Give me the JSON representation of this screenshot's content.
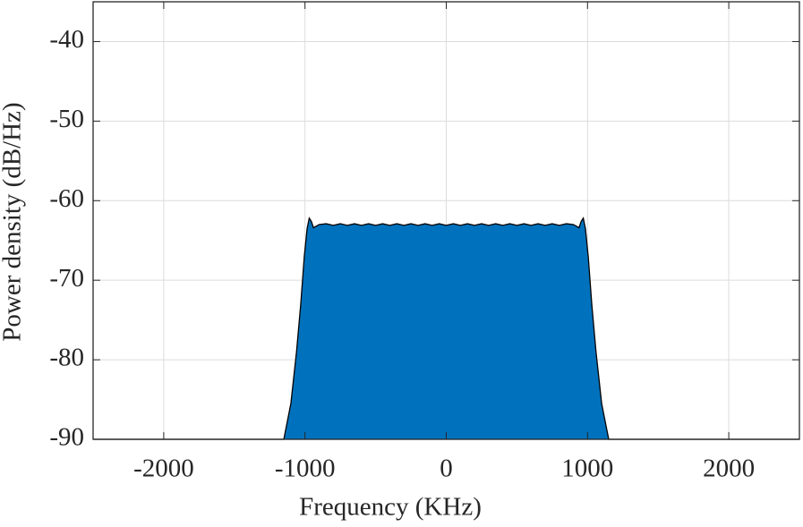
{
  "chart_data": {
    "type": "area",
    "xlabel": "Frequency (KHz)",
    "ylabel": "Power density (dB/Hz)",
    "x": [
      -2500,
      -1150,
      -1100,
      -1060,
      -1030,
      -1005,
      -985,
      -970,
      -955,
      -940,
      -900,
      -850,
      -800,
      -750,
      -700,
      -650,
      -600,
      -550,
      -500,
      -450,
      -400,
      -350,
      -300,
      -250,
      -200,
      -150,
      -100,
      -50,
      0,
      50,
      100,
      150,
      200,
      250,
      300,
      350,
      400,
      450,
      500,
      550,
      600,
      650,
      700,
      750,
      800,
      850,
      900,
      940,
      955,
      970,
      985,
      1005,
      1030,
      1060,
      1100,
      1150,
      2500
    ],
    "values": [
      -90,
      -90,
      -85.5,
      -79,
      -73,
      -67,
      -63.5,
      -62.2,
      -62.6,
      -63.4,
      -63,
      -62.9,
      -63.1,
      -62.9,
      -63.1,
      -62.9,
      -63.1,
      -62.9,
      -63.1,
      -62.9,
      -63.1,
      -62.9,
      -63.1,
      -62.9,
      -63.1,
      -62.9,
      -63.1,
      -62.9,
      -63.1,
      -62.9,
      -63.1,
      -62.9,
      -63.1,
      -62.9,
      -63.1,
      -62.9,
      -63.1,
      -62.9,
      -63.1,
      -62.9,
      -63.1,
      -62.9,
      -63.1,
      -62.9,
      -63.1,
      -62.9,
      -63,
      -63.4,
      -62.6,
      -62.2,
      -63.5,
      -67,
      -73,
      -79,
      -85.5,
      -90,
      -90
    ],
    "color": "#0072bd",
    "line_color": "#000000",
    "xlim": [
      -2500,
      2500
    ],
    "ylim": [
      -90,
      -35
    ],
    "xticks": [
      -2000,
      -1000,
      0,
      1000,
      2000
    ],
    "yticks": [
      -90,
      -80,
      -70,
      -60,
      -50,
      -40
    ],
    "grid": true
  }
}
